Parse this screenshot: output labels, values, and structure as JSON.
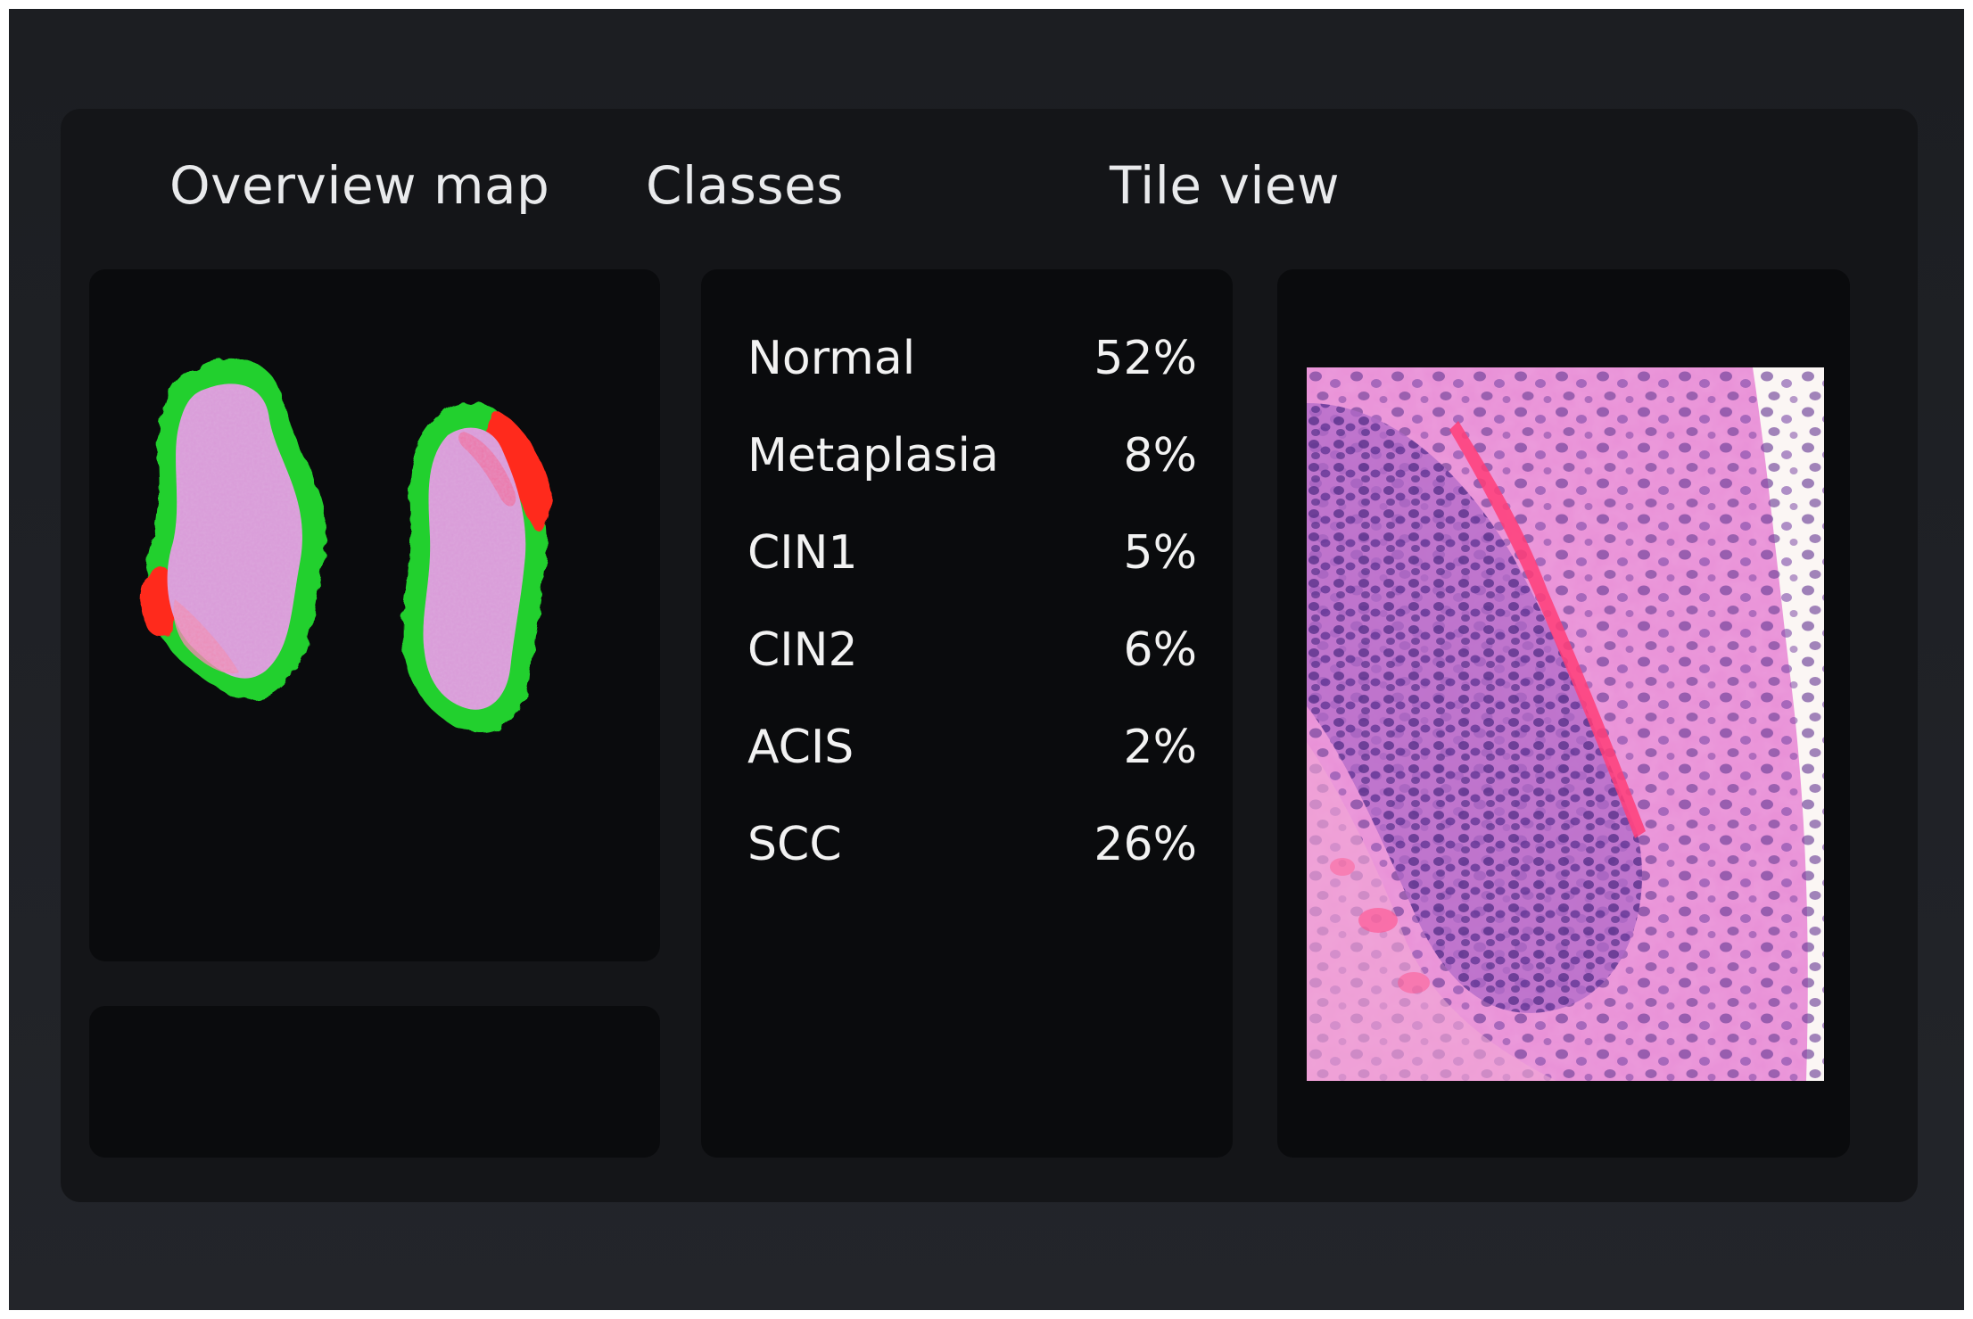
{
  "panels": {
    "overview": {
      "title": "Overview map"
    },
    "classes": {
      "title": "Classes"
    },
    "tile": {
      "title": "Tile view"
    }
  },
  "classes": [
    {
      "name": "Normal",
      "percent": "52%"
    },
    {
      "name": "Metaplasia",
      "percent": "8%"
    },
    {
      "name": "CIN1",
      "percent": "5%"
    },
    {
      "name": "CIN2",
      "percent": "6%"
    },
    {
      "name": "ACIS",
      "percent": "2%"
    },
    {
      "name": "SCC",
      "percent": "26%"
    }
  ],
  "colors": {
    "background": "#1e2025",
    "card": "#141518",
    "panel": "#0a0b0d",
    "normal_region": "#22d02e",
    "lesion_region": "#ff2a1a",
    "tissue": "#d99ad8"
  },
  "icons": {
    "overview": "tissue-segmentation-map",
    "tile": "histology-tile-image"
  }
}
